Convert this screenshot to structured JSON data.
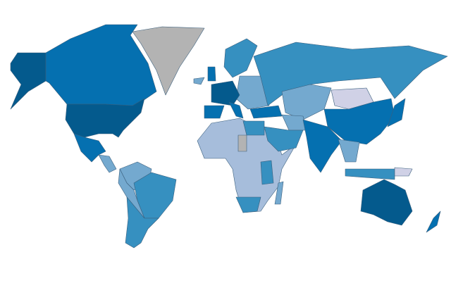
{
  "map": {
    "type": "choropleth",
    "legend": "none",
    "color_scale": {
      "level_1": "#d0d1e6",
      "level_2": "#a6bddb",
      "level_3": "#74a9cf",
      "level_4": "#3690c0",
      "level_5": "#0570b0",
      "level_6": "#045a8d",
      "no_data": "#b3b3b3"
    },
    "regions": {
      "alaska": "level_6",
      "canada": "level_5",
      "greenland": "no_data",
      "usa": "level_6",
      "mexico": "level_5",
      "central-america": "level_3",
      "northern-south-america": "level_3",
      "brazil": "level_4",
      "peru-bolivia": "level_3",
      "argentina-chile": "level_4",
      "africa": "level_2",
      "egypt": "level_4",
      "sudan": "no_data",
      "south-africa": "level_4",
      "east-africa": "level_4",
      "madagascar": "level_3",
      "western-europe": "level_6",
      "spain": "level_5",
      "uk": "level_5",
      "italy": "level_5",
      "scandinavia": "level_4",
      "eastern-europe": "level_3",
      "iceland": "level_3",
      "turkey": "level_5",
      "russia": "level_4",
      "central-asia": "level_3",
      "mongolia": "level_1",
      "china": "level_5",
      "india": "level_5",
      "middle-east": "level_4",
      "iran": "level_3",
      "southeast-asia": "level_3",
      "indonesia": "level_4",
      "japan": "level_5",
      "australia": "level_6",
      "new-zealand": "level_5",
      "papua": "level_1"
    }
  }
}
